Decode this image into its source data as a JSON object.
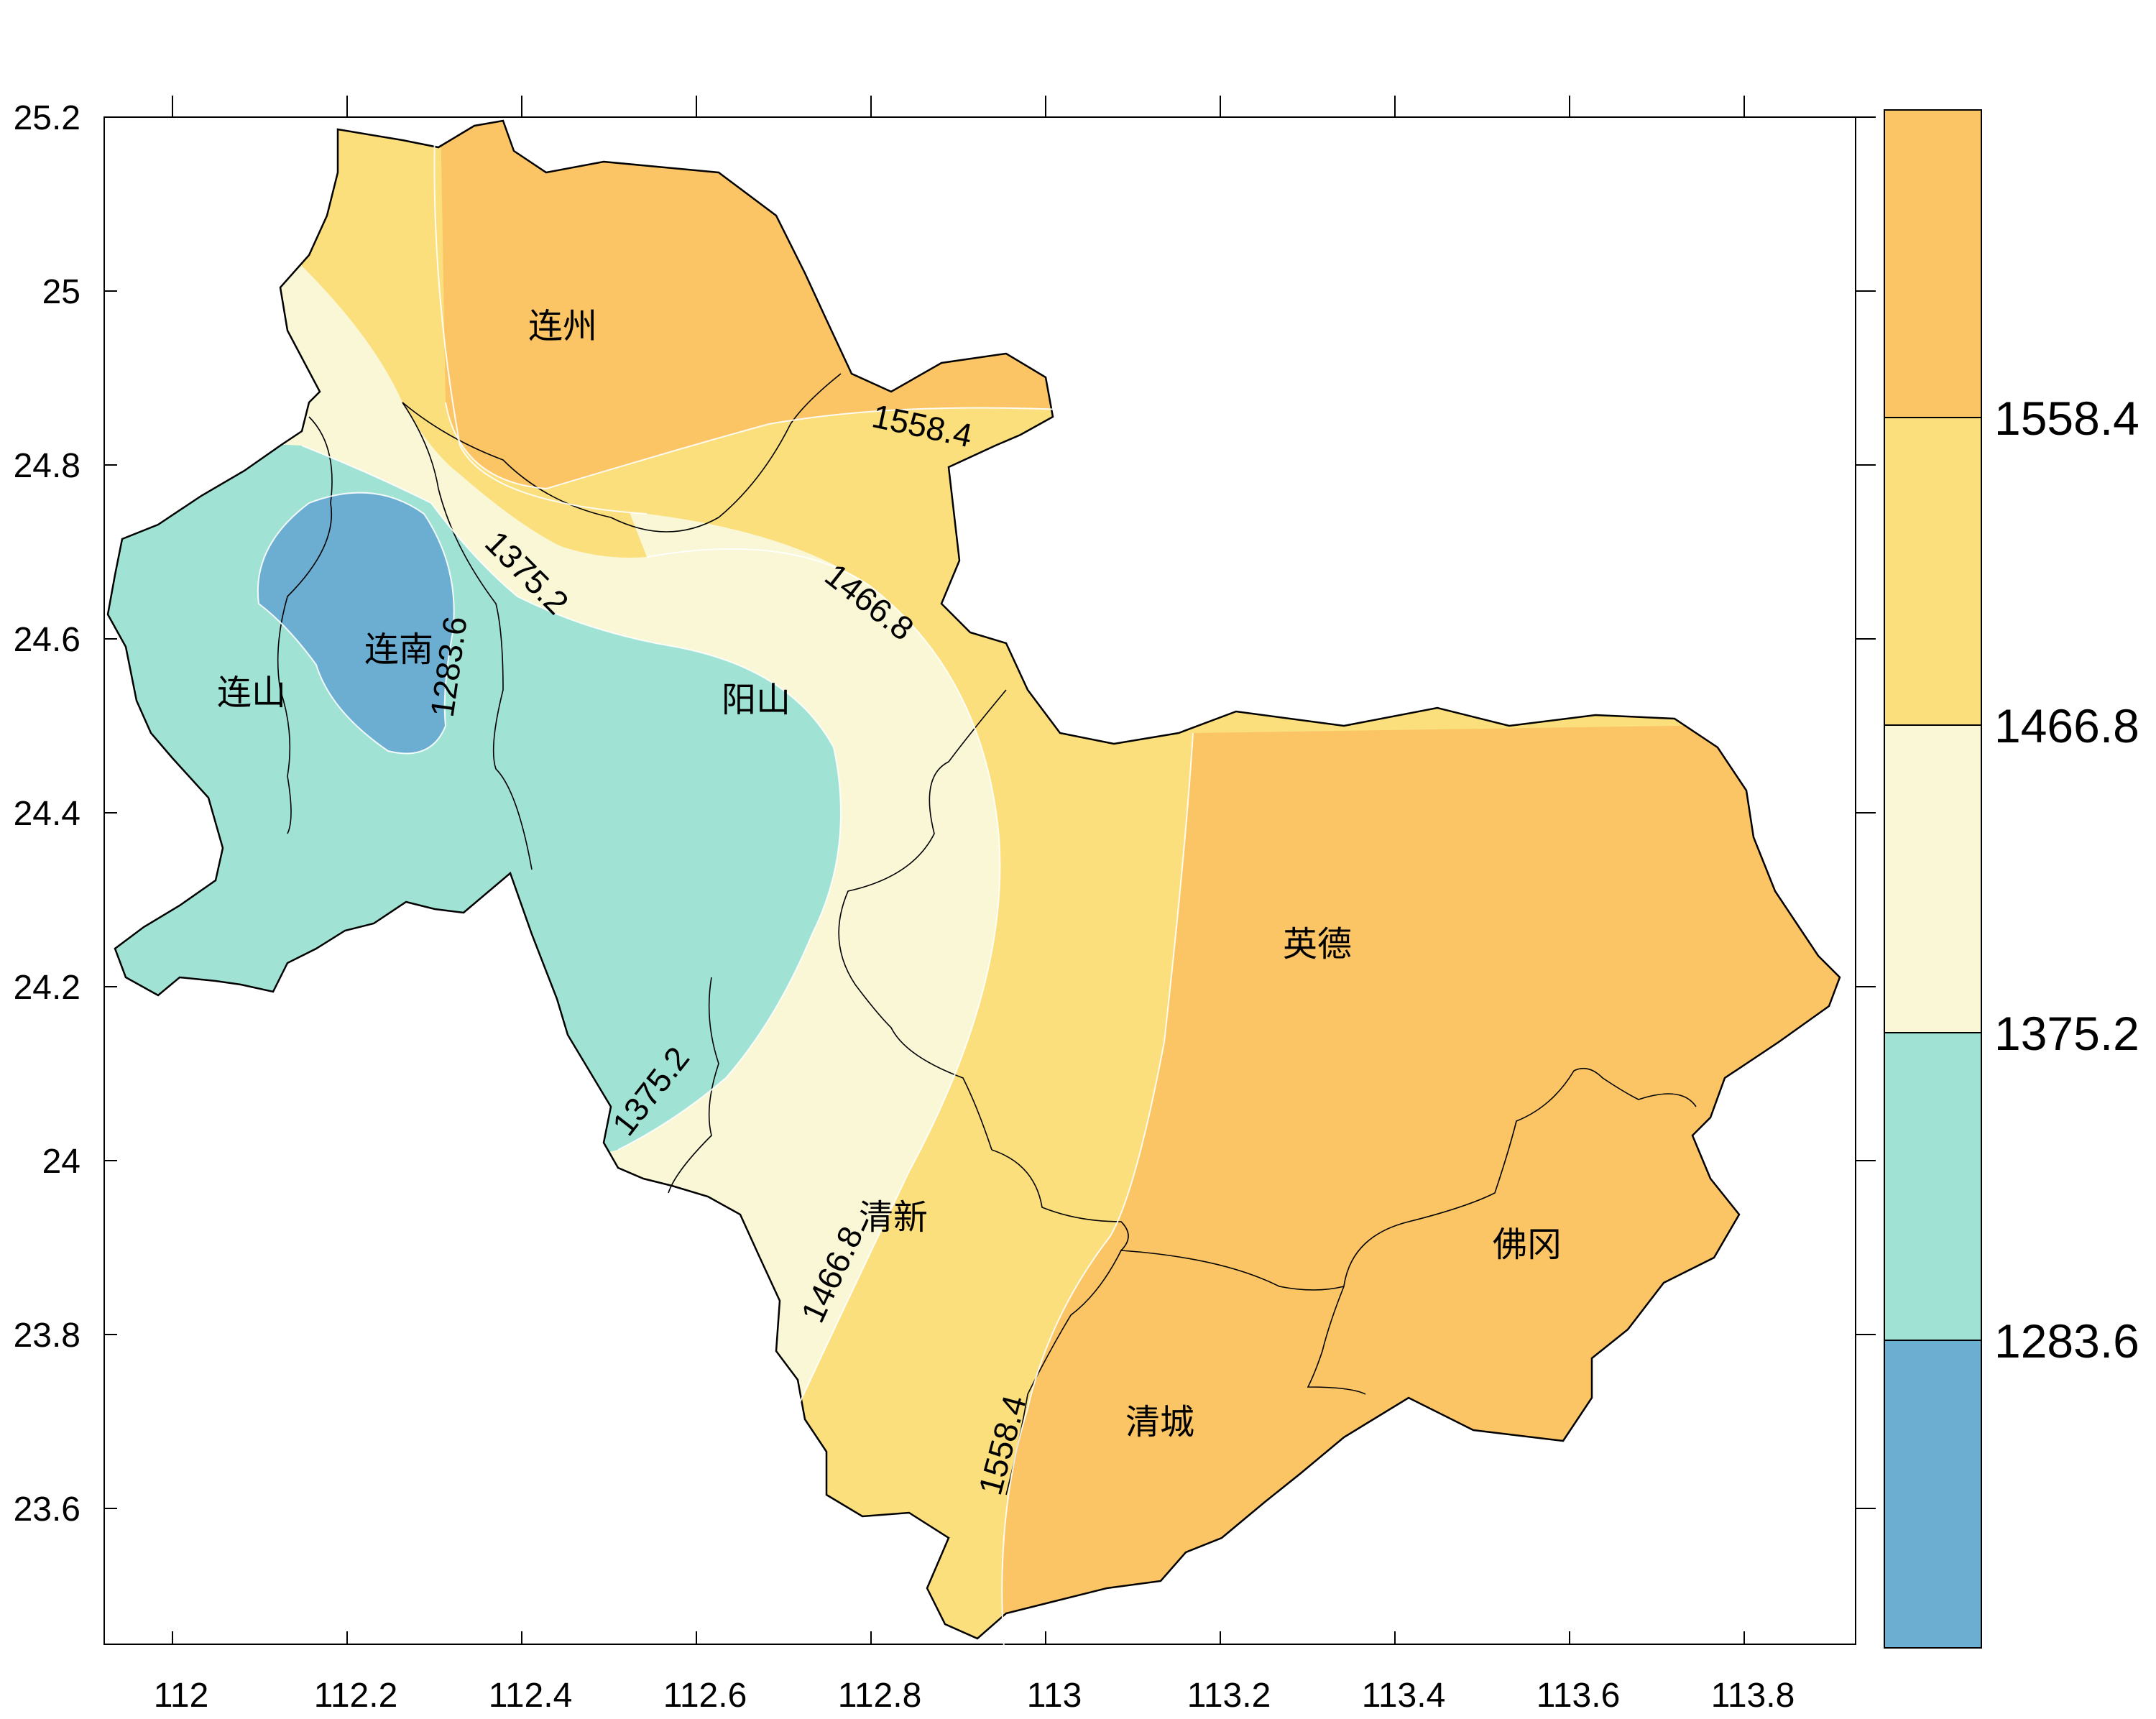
{
  "map": {
    "x_axis_ticks": [
      "112",
      "112.2",
      "112.4",
      "112.6",
      "112.8",
      "113",
      "113.2",
      "113.4",
      "113.6",
      "113.8"
    ],
    "y_axis_ticks": [
      "25.2",
      "25",
      "24.8",
      "24.6",
      "24.4",
      "24.2",
      "24",
      "23.8",
      "23.6"
    ],
    "legend": {
      "bins": [
        {
          "color": "#FBC566",
          "label": ""
        },
        {
          "color": "#FBDF7C",
          "label": "1558.4"
        },
        {
          "color": "#F9F7D6",
          "label": "1466.8"
        },
        {
          "color": "#A0E3D5",
          "label": "1375.2"
        },
        {
          "color": "#6BAED2",
          "label": "1283.6"
        }
      ]
    },
    "places": [
      "连州",
      "连南",
      "连山",
      "阳山",
      "英德",
      "清新",
      "佛冈",
      "清城"
    ],
    "contour_labels": [
      "1558.4",
      "1466.8",
      "1375.2",
      "1283.6",
      "1375.2",
      "1466.8",
      "1558.4"
    ]
  }
}
